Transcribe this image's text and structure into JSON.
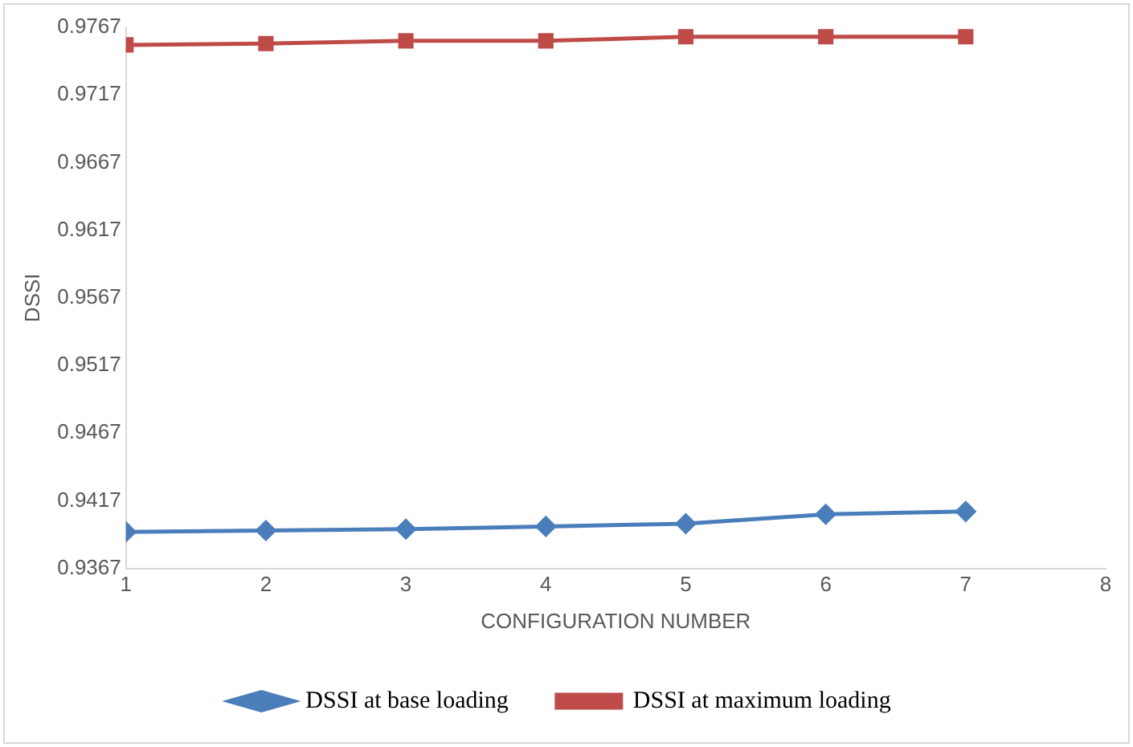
{
  "chart_data": {
    "type": "line",
    "xlabel": "CONFIGURATION NUMBER",
    "ylabel": "DSSI",
    "x": [
      1,
      2,
      3,
      4,
      5,
      6,
      7
    ],
    "series": [
      {
        "name": "DSSI at base loading",
        "color": "#4a7ebb",
        "marker": "diamond",
        "values": [
          0.9394,
          0.9395,
          0.9396,
          0.9398,
          0.94,
          0.9407,
          0.9409
        ]
      },
      {
        "name": "DSSI at maximum loading",
        "color": "#be4b48",
        "marker": "square",
        "values": [
          0.9754,
          0.9755,
          0.9757,
          0.9757,
          0.976,
          0.976,
          0.976
        ]
      }
    ],
    "xlim": [
      1,
      8
    ],
    "xticks": [
      1,
      2,
      3,
      4,
      5,
      6,
      7,
      8
    ],
    "ylim": [
      0.9367,
      0.9767
    ],
    "yticks": [
      0.9367,
      0.9417,
      0.9467,
      0.9517,
      0.9567,
      0.9617,
      0.9667,
      0.9717,
      0.9767
    ],
    "grid": false,
    "legend": "bottom",
    "line_style": "solid"
  }
}
